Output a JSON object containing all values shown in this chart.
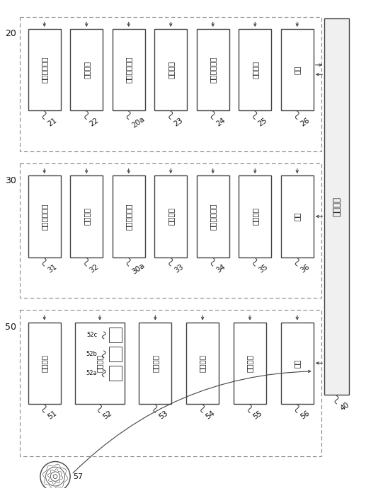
{
  "bg": "#ffffff",
  "right_bar_label": "运算装置",
  "right_bar_num": "40",
  "group20_label": "20",
  "group30_label": "30",
  "group50_label": "50",
  "g20_boxes": [
    {
      "text": "定性控制部件",
      "num": "21"
    },
    {
      "text": "存储部件",
      "num": "22"
    },
    {
      "text": "条形码读码器",
      "num": "20a"
    },
    {
      "text": "吸移部件",
      "num": "23"
    },
    {
      "text": "试纸供应部件",
      "num": "24"
    },
    {
      "text": "检测部件",
      "num": "25"
    },
    {
      "text": "接口",
      "num": "26"
    }
  ],
  "g30_boxes": [
    {
      "text": "沉渣控制部件",
      "num": "31"
    },
    {
      "text": "存储部件",
      "num": "32"
    },
    {
      "text": "条形码读码器",
      "num": "30a"
    },
    {
      "text": "吸移部件",
      "num": "33"
    },
    {
      "text": "试样制备部件",
      "num": "34"
    },
    {
      "text": "检测部件",
      "num": "35"
    },
    {
      "text": "接口",
      "num": "36"
    }
  ],
  "g50_boxes": [
    {
      "text": "控制部件",
      "num": "51",
      "wide": false
    },
    {
      "text": "存储部件",
      "num": "52",
      "wide": true
    },
    {
      "text": "显示部件",
      "num": "53",
      "wide": false
    },
    {
      "text": "输入部件",
      "num": "54",
      "wide": false
    },
    {
      "text": "读取装置",
      "num": "55",
      "wide": false
    },
    {
      "text": "接口",
      "num": "56",
      "wide": false
    }
  ],
  "sub52": [
    {
      "label": "52c",
      "idx": 0
    },
    {
      "label": "52b",
      "idx": 1
    },
    {
      "label": "52a",
      "idx": 2
    }
  ],
  "disk_num": "57",
  "edge_color": "#444444",
  "dash_color": "#888888",
  "text_color": "#111111",
  "bar_fill": "#f0f0f0"
}
